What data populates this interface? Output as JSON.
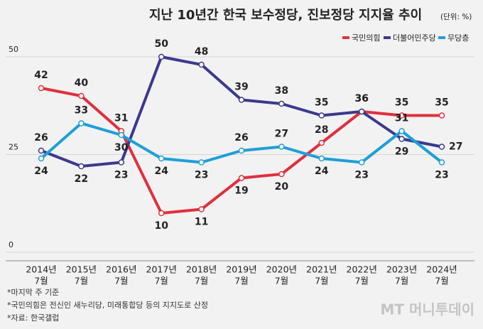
{
  "chart_data": {
    "type": "line",
    "title": "지난 10년간 한국 보수정당, 진보정당 지지율 추이",
    "unit_note": "(단위: %)",
    "categories": [
      [
        "2014년",
        "7월"
      ],
      [
        "2015년",
        "7월"
      ],
      [
        "2016년",
        "7월"
      ],
      [
        "2017년",
        "7월"
      ],
      [
        "2018년",
        "7월"
      ],
      [
        "2019년",
        "7월"
      ],
      [
        "2020년",
        "7월"
      ],
      [
        "2021년",
        "7월"
      ],
      [
        "2022년",
        "7월"
      ],
      [
        "2023년",
        "7월"
      ],
      [
        "2024년",
        "7월"
      ]
    ],
    "series": [
      {
        "name": "국민의힘",
        "color": "#e0303c",
        "values": [
          42,
          40,
          31,
          10,
          11,
          19,
          20,
          28,
          36,
          35,
          35
        ]
      },
      {
        "name": "더불어민주당",
        "color": "#3b3a8e",
        "values": [
          26,
          22,
          23,
          50,
          48,
          39,
          38,
          35,
          36,
          29,
          27
        ]
      },
      {
        "name": "무당층",
        "color": "#1e9fd8",
        "values": [
          24,
          33,
          30,
          24,
          23,
          26,
          27,
          24,
          23,
          31,
          23
        ]
      }
    ],
    "ylim": [
      0,
      50
    ],
    "yticks": [
      0,
      25,
      50
    ],
    "grid": true,
    "legend": "top-right",
    "notes": [
      "*마지막 주 기준",
      "*국민의힘은 전신인 새누리당, 미래통합당 등의 지지도로 산정",
      "*자료: 한국갤럽"
    ],
    "watermark": "MT 머니투데이"
  }
}
